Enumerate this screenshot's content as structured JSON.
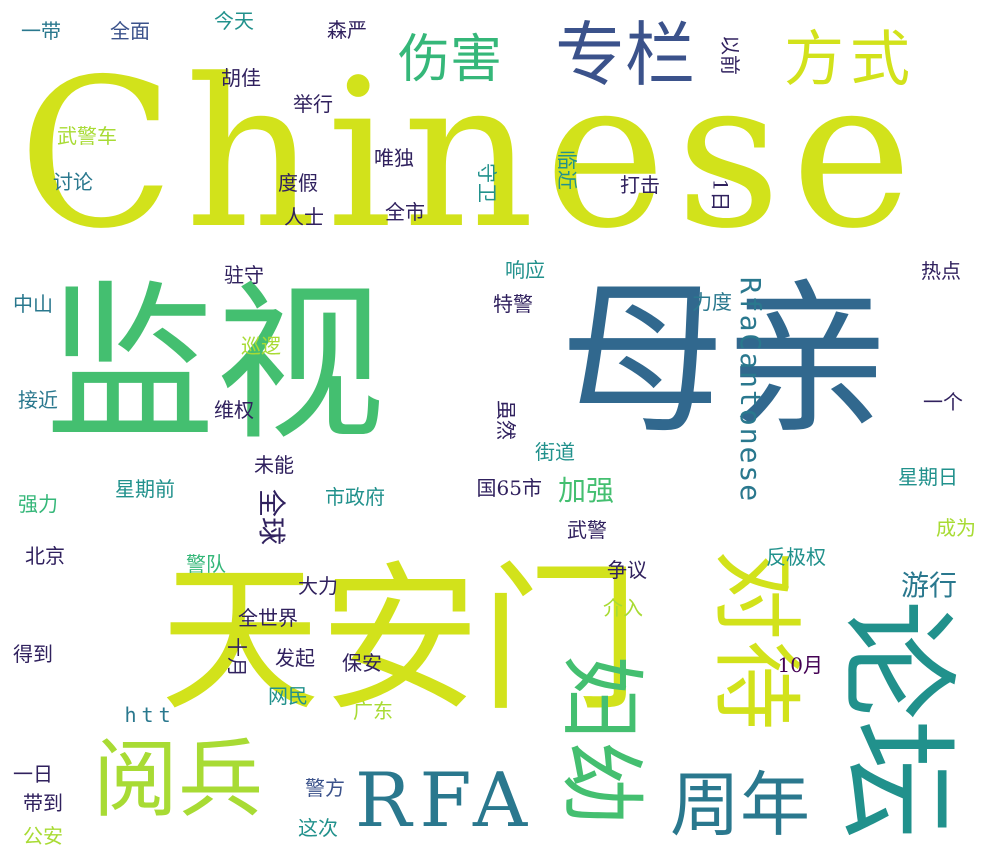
{
  "word_cloud": {
    "background": "#ffffff",
    "palette": {
      "yellow_green": "#d2e21b",
      "light_green": "#a8db34",
      "green": "#44bf70",
      "mid_green": "#35b779",
      "teal": "#21918c",
      "teal_blue": "#2a788e",
      "blue": "#31688e",
      "indigo": "#3b528b",
      "dark_navy": "#30215e",
      "purple": "#440154"
    },
    "words": [
      {
        "text": "Chinese"
      },
      {
        "text": "监视"
      },
      {
        "text": "母亲"
      },
      {
        "text": "天安门"
      },
      {
        "text": "论坛"
      },
      {
        "text": "对待"
      },
      {
        "text": "妇幼"
      },
      {
        "text": "阅兵"
      },
      {
        "text": "RFA"
      },
      {
        "text": "周年"
      },
      {
        "text": "专栏"
      },
      {
        "text": "方式"
      },
      {
        "text": "伤害"
      },
      {
        "text": "RfaCantonese"
      },
      {
        "text": "全球"
      },
      {
        "text": "加强"
      },
      {
        "text": "游行"
      },
      {
        "text": "一带"
      },
      {
        "text": "全面"
      },
      {
        "text": "今天"
      },
      {
        "text": "森严"
      },
      {
        "text": "以前"
      },
      {
        "text": "胡佳"
      },
      {
        "text": "举行"
      },
      {
        "text": "武警车"
      },
      {
        "text": "讨论"
      },
      {
        "text": "唯独"
      },
      {
        "text": "度假"
      },
      {
        "text": "人士"
      },
      {
        "text": "全市"
      },
      {
        "text": "守卫"
      },
      {
        "text": "临近"
      },
      {
        "text": "打击"
      },
      {
        "text": "1日"
      },
      {
        "text": "驻守"
      },
      {
        "text": "响应"
      },
      {
        "text": "热点"
      },
      {
        "text": "中山"
      },
      {
        "text": "特警"
      },
      {
        "text": "力度"
      },
      {
        "text": "巡逻"
      },
      {
        "text": "接近"
      },
      {
        "text": "维权"
      },
      {
        "text": "虽然"
      },
      {
        "text": "一个"
      },
      {
        "text": "街道"
      },
      {
        "text": "未能"
      },
      {
        "text": "星期日"
      },
      {
        "text": "国65市"
      },
      {
        "text": "星期前"
      },
      {
        "text": "强力"
      },
      {
        "text": "市政府"
      },
      {
        "text": "成为"
      },
      {
        "text": "武警"
      },
      {
        "text": "北京"
      },
      {
        "text": "警队"
      },
      {
        "text": "争议"
      },
      {
        "text": "反极权"
      },
      {
        "text": "大力"
      },
      {
        "text": "介入"
      },
      {
        "text": "全世界"
      },
      {
        "text": "十月"
      },
      {
        "text": "得到"
      },
      {
        "text": "发起"
      },
      {
        "text": "保安"
      },
      {
        "text": "10月"
      },
      {
        "text": "网民"
      },
      {
        "text": "广东"
      },
      {
        "text": "htt"
      },
      {
        "text": "一日"
      },
      {
        "text": "警方"
      },
      {
        "text": "带到"
      },
      {
        "text": "这次"
      },
      {
        "text": "公安"
      }
    ]
  }
}
